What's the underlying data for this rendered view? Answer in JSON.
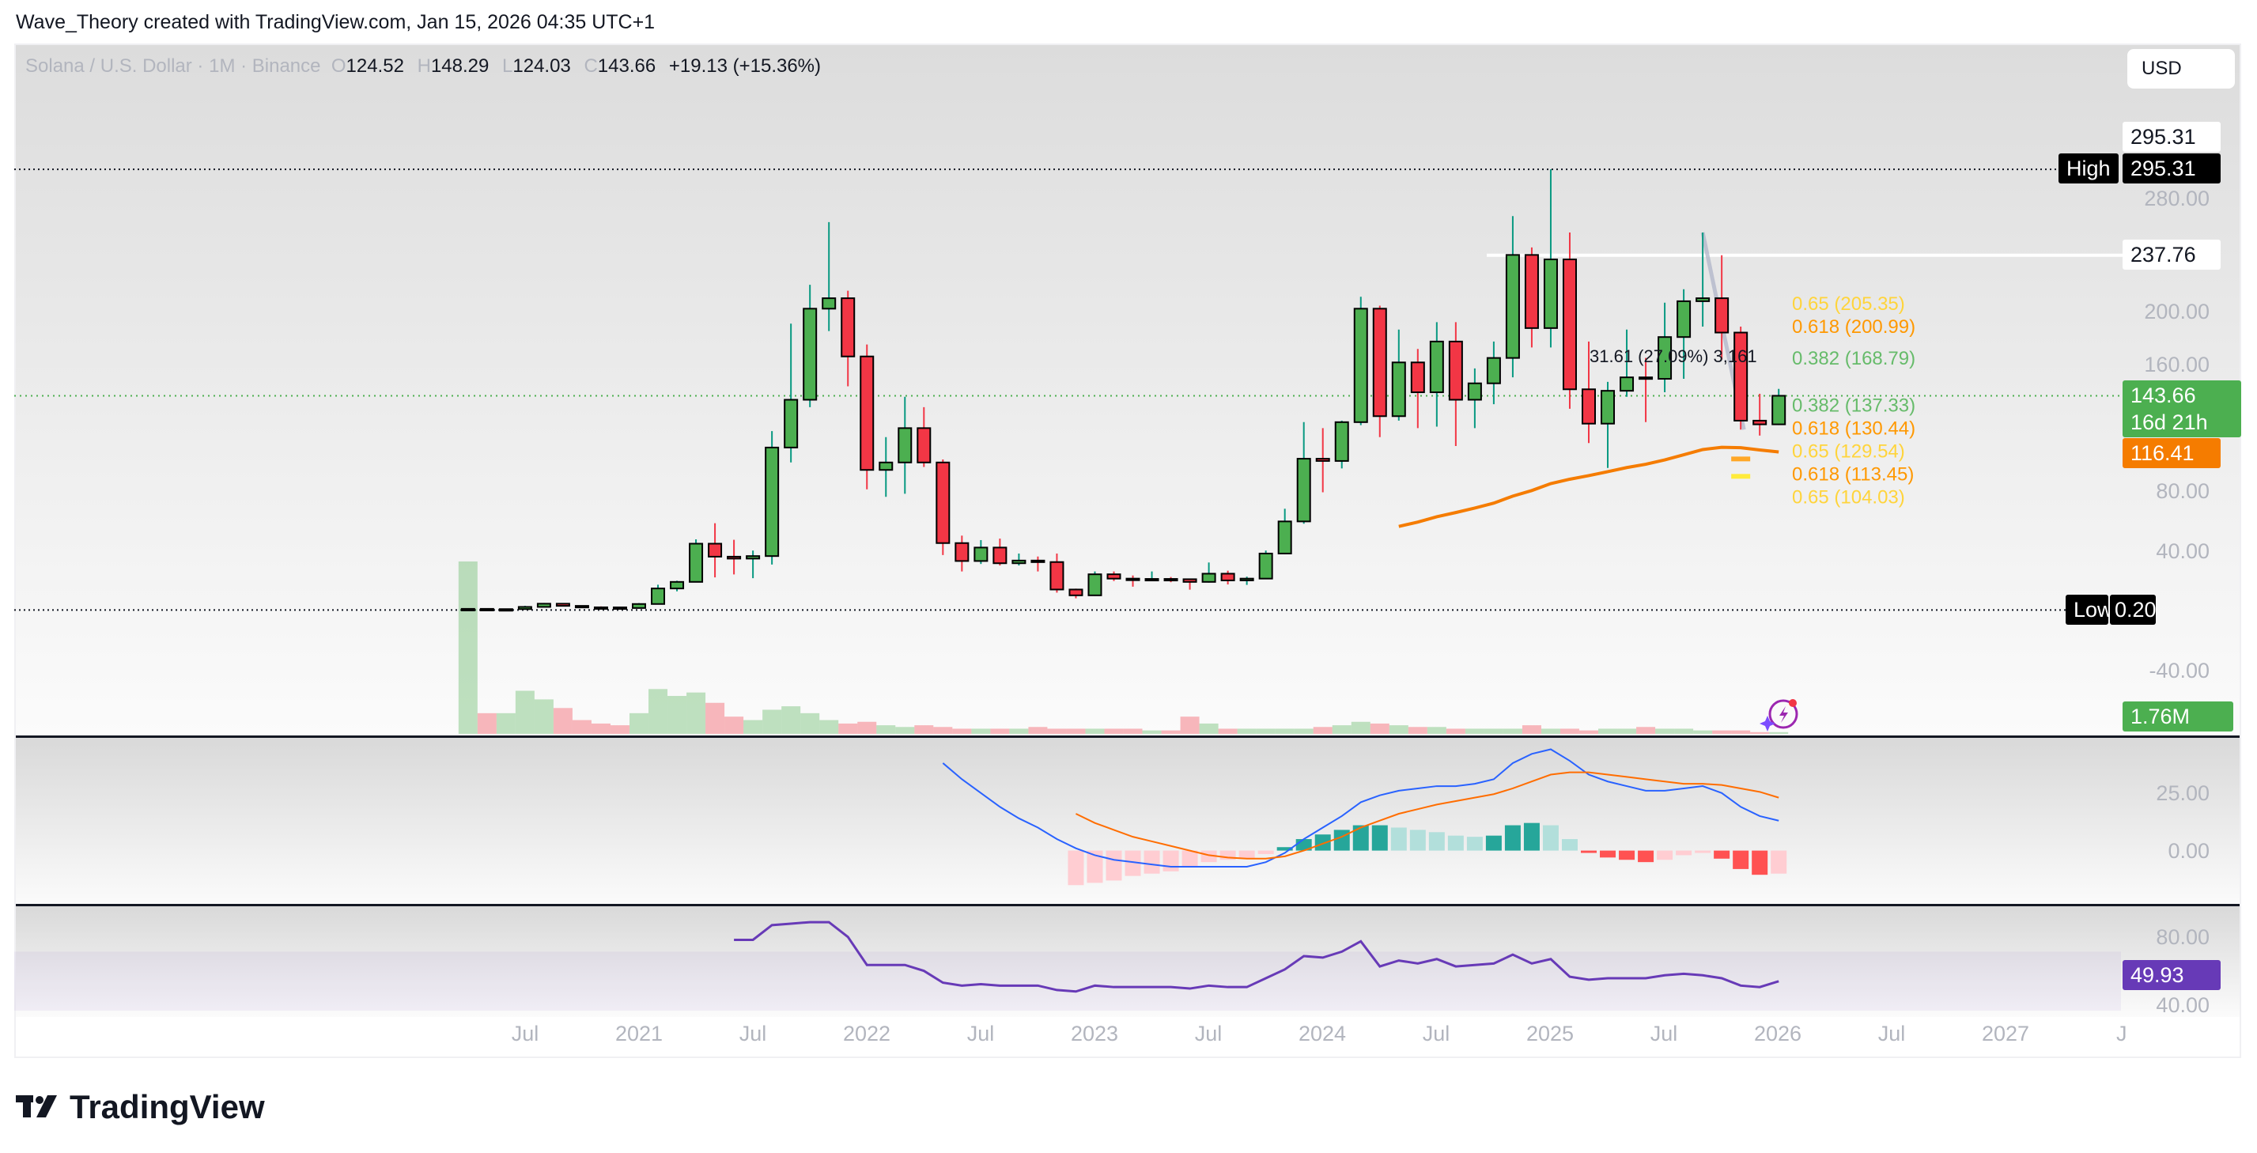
{
  "credit": "Wave_Theory created with TradingView.com, Jan 15, 2026 04:35 UTC+1",
  "legend": {
    "symbol": "Solana / U.S. Dollar · 1M · Binance",
    "o_label": "O",
    "open": "124.52",
    "h_label": "H",
    "high": "148.29",
    "l_label": "L",
    "low": "124.03",
    "c_label": "C",
    "close": "143.66",
    "change": "+19.13 (+15.36%)"
  },
  "currency_button": "USD",
  "price_axis": {
    "ticks": [
      "280.00",
      "200.00",
      "160.00",
      "80.00",
      "40.00",
      "-40.00"
    ],
    "top_label": "295.31",
    "high_label": "High",
    "high_value": "295.31",
    "level_label": "237.76",
    "last_price": "143.66",
    "countdown": "16d 21h",
    "ma_value": "116.41",
    "low_label": "Low",
    "low_value": "0.20",
    "volume_value": "1.76M"
  },
  "macd_axis": {
    "ticks": [
      "25.00",
      "0.00"
    ]
  },
  "rsi_axis": {
    "ticks": [
      "80.00",
      "40.00"
    ],
    "value": "49.93"
  },
  "time_axis": [
    "Jul",
    "2021",
    "Jul",
    "2022",
    "Jul",
    "2023",
    "Jul",
    "2024",
    "Jul",
    "2025",
    "Jul",
    "2026",
    "Jul",
    "2027",
    "J"
  ],
  "annotations": {
    "measure": "31.61 (27.09%) 3,161",
    "fib_levels": [
      {
        "label": "0.65 (205.35)",
        "price": 205.35,
        "color": "#ffd43b"
      },
      {
        "label": "0.618 (200.99)",
        "price": 200.99,
        "color": "#ff9800"
      },
      {
        "label": "0.382 (168.79)",
        "price": 168.79,
        "color": "#66bb6a"
      },
      {
        "label": "0.382 (137.33)",
        "price": 137.33,
        "color": "#66bb6a"
      },
      {
        "label": "0.65 (129.54)",
        "price": 129.54,
        "color": "#ffd43b"
      },
      {
        "label": "0.618 (130.44)",
        "price": 130.44,
        "color": "#ff9800"
      },
      {
        "label": "0.618 (113.45)",
        "price": 113.45,
        "color": "#ff9800"
      },
      {
        "label": "0.65 (104.03)",
        "price": 104.03,
        "color": "#ffd43b"
      }
    ]
  },
  "logo": "TradingView",
  "colors": {
    "up": "#4caf50",
    "down": "#f23645",
    "ma": "#f57c00",
    "macd": "#2962ff",
    "signal": "#ff6d00",
    "rsi": "#673ab7"
  },
  "chart_data": {
    "type": "candlestick",
    "start_month": "2020-04",
    "interval": "1M",
    "ohlc": [
      [
        0.22,
        1.3,
        0.2,
        0.95
      ],
      [
        0.95,
        0.98,
        0.5,
        0.65
      ],
      [
        0.65,
        0.95,
        0.6,
        0.78
      ],
      [
        0.78,
        3.0,
        0.7,
        2.25
      ],
      [
        2.25,
        4.9,
        2.2,
        4.4
      ],
      [
        4.4,
        4.8,
        2.6,
        2.95
      ],
      [
        2.95,
        3.1,
        1.85,
        1.98
      ],
      [
        1.98,
        2.6,
        1.5,
        1.95
      ],
      [
        1.95,
        2.1,
        1.3,
        1.51
      ],
      [
        1.51,
        4.8,
        1.45,
        4.2
      ],
      [
        4.2,
        17.1,
        4.1,
        14.6
      ],
      [
        14.6,
        19.8,
        12.7,
        19.0
      ],
      [
        19.0,
        47.5,
        18.9,
        44.6
      ],
      [
        44.6,
        58.3,
        22.0,
        35.9
      ],
      [
        35.9,
        47.2,
        24.0,
        34.6
      ],
      [
        34.6,
        40,
        21.5,
        36.3
      ],
      [
        36.3,
        120,
        30.6,
        109
      ],
      [
        109,
        192,
        99,
        141
      ],
      [
        141,
        218,
        136,
        202
      ],
      [
        202,
        260,
        187,
        209
      ],
      [
        209,
        214,
        150,
        170
      ],
      [
        170,
        178,
        81,
        94
      ],
      [
        94,
        116,
        76,
        99
      ],
      [
        99,
        143,
        78,
        122
      ],
      [
        122,
        136,
        96,
        99
      ],
      [
        99,
        101,
        37,
        45
      ],
      [
        45,
        50,
        26,
        33
      ],
      [
        33,
        47,
        31,
        42
      ],
      [
        42,
        48,
        30,
        31.5
      ],
      [
        31.5,
        38,
        30,
        33.3
      ],
      [
        33.3,
        36,
        26,
        32.3
      ],
      [
        32.3,
        38,
        11.8,
        13.9
      ],
      [
        13.9,
        14.5,
        8,
        10
      ],
      [
        10,
        26,
        9.6,
        24.1
      ],
      [
        24.1,
        26,
        19.6,
        21.2
      ],
      [
        21.2,
        23.3,
        15.8,
        20.8
      ],
      [
        20.8,
        26,
        19.5,
        21
      ],
      [
        21,
        22.3,
        18.8,
        20.8
      ],
      [
        20.8,
        21,
        13.8,
        19
      ],
      [
        19,
        32,
        18.5,
        24.5
      ],
      [
        24.5,
        26.5,
        17.3,
        20
      ],
      [
        20,
        22.5,
        17,
        21.2
      ],
      [
        21.2,
        40,
        20.8,
        38
      ],
      [
        38,
        68,
        37.5,
        59.5
      ],
      [
        59.5,
        126,
        58,
        101.5
      ],
      [
        101.5,
        122,
        79,
        100
      ],
      [
        100,
        127,
        95,
        126
      ],
      [
        126,
        210,
        124,
        202
      ],
      [
        202,
        204,
        116,
        130
      ],
      [
        130,
        188,
        127,
        166
      ],
      [
        166,
        175,
        122,
        146
      ],
      [
        146,
        193,
        123,
        180
      ],
      [
        180,
        193,
        110,
        141
      ],
      [
        141,
        162,
        122,
        152
      ],
      [
        152,
        180,
        138,
        169
      ],
      [
        169,
        264,
        156,
        238
      ],
      [
        238,
        243,
        176,
        189
      ],
      [
        189,
        295.31,
        176,
        235
      ],
      [
        235,
        253,
        135,
        148
      ],
      [
        148,
        180,
        112,
        125
      ],
      [
        125,
        153,
        95.3,
        147
      ],
      [
        147,
        188,
        143,
        156
      ],
      [
        156,
        169,
        126,
        155
      ],
      [
        155,
        206,
        146,
        183
      ],
      [
        183,
        215,
        155,
        207
      ],
      [
        207,
        253,
        190,
        209
      ],
      [
        209,
        237.76,
        168,
        186
      ],
      [
        186,
        190,
        121,
        127
      ],
      [
        127,
        145,
        117,
        124.52
      ],
      [
        124.52,
        148.29,
        124.03,
        143.66
      ]
    ],
    "volume": [
      100,
      12,
      12,
      25,
      20,
      15,
      8,
      6,
      5,
      12,
      26,
      22,
      24,
      18,
      10,
      8,
      14,
      16,
      12,
      8,
      6,
      7,
      5,
      4,
      5,
      4,
      3,
      3,
      3,
      3,
      4,
      3,
      3,
      3,
      3,
      3,
      2,
      2,
      10,
      6,
      3,
      3,
      3,
      3,
      3,
      4,
      5,
      7,
      6,
      5,
      4,
      4,
      3,
      3,
      3,
      3,
      5,
      3,
      3,
      2,
      3,
      3,
      4,
      3,
      3,
      2,
      2,
      2,
      1,
      1
    ],
    "ma_period": 50,
    "price_ylim": [
      -60,
      320
    ],
    "macd": {
      "start_month": "2022-05",
      "macd": [
        38,
        31,
        25,
        19,
        14,
        10,
        5,
        1,
        -2,
        -4,
        -5,
        -6,
        -7,
        -7,
        -7,
        -7,
        -7,
        -5,
        -1,
        5,
        10,
        15,
        21,
        24,
        26,
        27,
        28,
        28,
        29,
        31,
        38,
        42,
        44,
        39,
        33,
        30,
        28,
        26,
        26,
        27,
        28,
        25,
        19,
        15,
        13
      ],
      "signal_start_month": "2022-12",
      "signal": [
        16,
        12,
        9,
        6,
        4,
        2,
        0,
        -2,
        -3,
        -3.5,
        -3.5,
        -2.5,
        0,
        3,
        6,
        10,
        13,
        16,
        18,
        20,
        21.5,
        23,
        24.5,
        27,
        30,
        33,
        34,
        34,
        33,
        32,
        31,
        30,
        29,
        29,
        28.5,
        27,
        25.5,
        23
      ]
    },
    "rsi": {
      "start_month": "2021-06",
      "values": [
        78,
        78,
        88,
        89,
        90,
        90,
        80,
        61,
        61,
        61,
        57,
        49,
        47,
        48,
        47,
        47,
        47,
        44,
        43,
        47,
        46,
        46,
        46,
        46,
        45,
        47,
        46,
        46,
        52,
        58,
        67,
        66,
        70,
        77,
        60,
        64,
        62,
        65,
        60,
        61,
        62,
        68,
        62,
        65,
        53,
        51,
        52,
        52,
        52,
        54,
        55,
        54,
        52,
        47,
        46,
        49.93
      ],
      "band": [
        30,
        70
      ]
    }
  }
}
